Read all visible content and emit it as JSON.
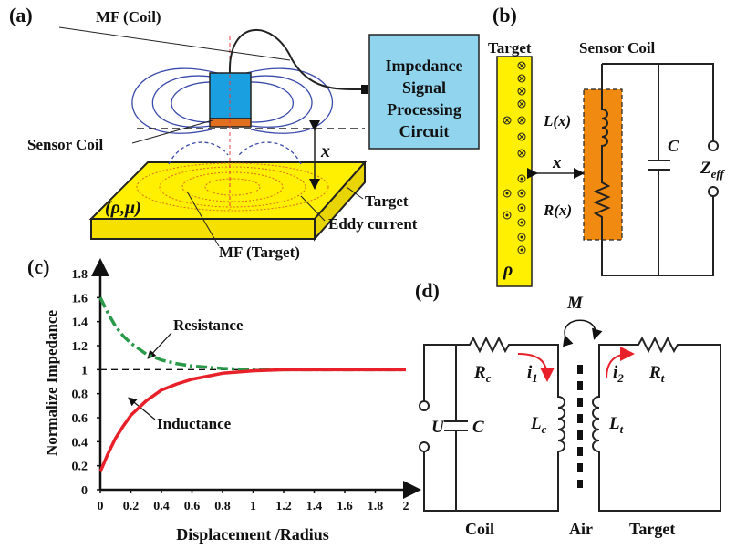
{
  "panel_a": {
    "label": "(a)",
    "mf_coil": "MF (Coil)",
    "circuit": [
      "Impedance",
      "Signal",
      "Processing",
      "Circuit"
    ],
    "sensor_coil": "Sensor Coil",
    "x": "x",
    "material": "(ρ,μ)",
    "target": "Target",
    "eddy": "Eddy current",
    "mf_target": "MF (Target)"
  },
  "panel_b": {
    "label": "(b)",
    "target": "Target",
    "sensor_coil": "Sensor Coil",
    "x": "x",
    "L": "L(x)",
    "R": "R(x)",
    "C": "C",
    "Z": {
      "main": "Z",
      "sub": "eff"
    },
    "rho": "ρ"
  },
  "chart_data": {
    "type": "line",
    "label": "(c)",
    "xlabel": "Displacement /Radius",
    "ylabel": "Normalize Impedance",
    "xlim": [
      0,
      2
    ],
    "ylim": [
      0,
      1.8
    ],
    "xticks": [
      0,
      0.2,
      0.4,
      0.6,
      0.8,
      1,
      1.2,
      1.4,
      1.6,
      1.8,
      2
    ],
    "yticks": [
      0,
      0.2,
      0.4,
      0.6,
      0.8,
      1,
      1.2,
      1.4,
      1.6,
      1.8
    ],
    "reference_line": 1,
    "series": [
      {
        "name": "Resistance",
        "color": "#2a9a4a",
        "dash": "dashdot",
        "x": [
          0,
          0.05,
          0.1,
          0.15,
          0.2,
          0.3,
          0.4,
          0.5,
          0.6,
          0.8,
          1,
          1.2,
          1.6,
          2
        ],
        "values": [
          1.6,
          1.47,
          1.36,
          1.28,
          1.22,
          1.13,
          1.08,
          1.05,
          1.03,
          1.01,
          1.0,
          1.0,
          1.0,
          1.0
        ]
      },
      {
        "name": "Inductance",
        "color": "#e8202a",
        "dash": "solid",
        "x": [
          0,
          0.05,
          0.1,
          0.15,
          0.2,
          0.3,
          0.4,
          0.5,
          0.6,
          0.8,
          1,
          1.2,
          1.6,
          2
        ],
        "values": [
          0.15,
          0.3,
          0.43,
          0.53,
          0.62,
          0.74,
          0.83,
          0.88,
          0.92,
          0.97,
          0.99,
          1.0,
          1.0,
          1.0
        ]
      }
    ]
  },
  "panel_d": {
    "label": "(d)",
    "M": "M",
    "U": "U",
    "C": "C",
    "Rc": {
      "main": "R",
      "sub": "c"
    },
    "i1": {
      "main": "i",
      "sub": "1"
    },
    "Lc": {
      "main": "L",
      "sub": "c"
    },
    "Lt": {
      "main": "L",
      "sub": "t"
    },
    "i2": {
      "main": "i",
      "sub": "2"
    },
    "Rt": {
      "main": "R",
      "sub": "t"
    },
    "coil": "Coil",
    "air": "Air",
    "target": "Target"
  }
}
